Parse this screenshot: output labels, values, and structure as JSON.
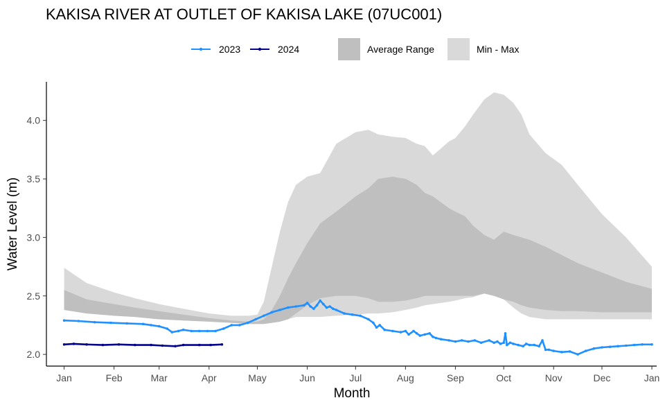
{
  "chart_data": {
    "type": "line",
    "title": "KAKISA RIVER AT OUTLET OF KAKISA LAKE (07UC001)",
    "xlabel": "Month",
    "ylabel": "Water Level (m)",
    "x_unit": "day of year",
    "xlim": [
      -10,
      369
    ],
    "ylim": [
      1.9,
      4.33
    ],
    "x_ticks": [
      {
        "label": "Jan",
        "day": 1
      },
      {
        "label": "Feb",
        "day": 32
      },
      {
        "label": "Mar",
        "day": 60
      },
      {
        "label": "Apr",
        "day": 91
      },
      {
        "label": "May",
        "day": 121
      },
      {
        "label": "Jun",
        "day": 152
      },
      {
        "label": "Jul",
        "day": 182
      },
      {
        "label": "Aug",
        "day": 213
      },
      {
        "label": "Sep",
        "day": 244
      },
      {
        "label": "Oct",
        "day": 274
      },
      {
        "label": "Nov",
        "day": 305
      },
      {
        "label": "Dec",
        "day": 335
      },
      {
        "label": "Jan",
        "day": 366
      }
    ],
    "y_ticks": [
      {
        "label": "2.0",
        "value": 2.0
      },
      {
        "label": "2.5",
        "value": 2.5
      },
      {
        "label": "3.0",
        "value": 3.0
      },
      {
        "label": "3.5",
        "value": 3.5
      },
      {
        "label": "4.0",
        "value": 4.0
      }
    ],
    "legend": {
      "position": "top",
      "lines": [
        {
          "label": "2023",
          "color": "#1e90ff"
        },
        {
          "label": "2024",
          "color": "#00008b"
        }
      ],
      "bands": [
        {
          "label": "Average Range",
          "color": "#bfbfbf"
        },
        {
          "label": "Min - Max",
          "color": "#d9d9d9"
        }
      ]
    },
    "min_max_band": {
      "name": "Min - Max",
      "color": "#d9d9d9",
      "x": [
        1,
        15,
        32,
        45,
        60,
        75,
        91,
        105,
        116,
        121,
        125,
        130,
        135,
        140,
        145,
        152,
        160,
        170,
        182,
        190,
        196,
        205,
        213,
        220,
        225,
        230,
        240,
        244,
        250,
        255,
        262,
        268,
        274,
        280,
        285,
        290,
        300,
        310,
        320,
        335,
        350,
        366
      ],
      "max": [
        2.74,
        2.61,
        2.53,
        2.48,
        2.43,
        2.39,
        2.35,
        2.33,
        2.33,
        2.34,
        2.45,
        2.75,
        3.05,
        3.3,
        3.45,
        3.52,
        3.55,
        3.8,
        3.9,
        3.92,
        3.88,
        3.86,
        3.85,
        3.8,
        3.78,
        3.7,
        3.82,
        3.85,
        3.95,
        4.05,
        4.18,
        4.24,
        4.22,
        4.15,
        4.05,
        3.88,
        3.72,
        3.62,
        3.45,
        3.2,
        3.0,
        2.75
      ],
      "min": [
        2.38,
        2.35,
        2.33,
        2.32,
        2.3,
        2.29,
        2.28,
        2.27,
        2.26,
        2.26,
        2.26,
        2.27,
        2.28,
        2.3,
        2.32,
        2.32,
        2.32,
        2.33,
        2.34,
        2.35,
        2.35,
        2.36,
        2.38,
        2.4,
        2.42,
        2.43,
        2.45,
        2.46,
        2.48,
        2.49,
        2.52,
        2.5,
        2.47,
        2.4,
        2.35,
        2.32,
        2.3,
        2.3,
        2.3,
        2.3,
        2.3,
        2.3
      ]
    },
    "average_band": {
      "name": "Average Range",
      "color": "#bfbfbf",
      "x": [
        1,
        15,
        32,
        45,
        60,
        75,
        91,
        105,
        116,
        121,
        125,
        130,
        135,
        140,
        145,
        152,
        160,
        170,
        182,
        190,
        196,
        205,
        213,
        220,
        225,
        230,
        240,
        244,
        250,
        255,
        262,
        268,
        274,
        280,
        285,
        290,
        300,
        310,
        320,
        335,
        350,
        366
      ],
      "upper": [
        2.55,
        2.47,
        2.43,
        2.4,
        2.37,
        2.34,
        2.31,
        2.29,
        2.28,
        2.28,
        2.3,
        2.38,
        2.5,
        2.65,
        2.78,
        2.95,
        3.12,
        3.22,
        3.35,
        3.42,
        3.5,
        3.52,
        3.5,
        3.45,
        3.38,
        3.35,
        3.25,
        3.22,
        3.18,
        3.1,
        3.02,
        2.98,
        3.05,
        3.02,
        3.0,
        2.98,
        2.92,
        2.85,
        2.78,
        2.7,
        2.62,
        2.56
      ],
      "lower": [
        2.38,
        2.35,
        2.33,
        2.32,
        2.3,
        2.29,
        2.28,
        2.27,
        2.26,
        2.26,
        2.26,
        2.27,
        2.28,
        2.3,
        2.35,
        2.42,
        2.48,
        2.5,
        2.5,
        2.48,
        2.45,
        2.45,
        2.46,
        2.48,
        2.5,
        2.5,
        2.5,
        2.5,
        2.5,
        2.5,
        2.52,
        2.5,
        2.47,
        2.45,
        2.42,
        2.4,
        2.38,
        2.37,
        2.37,
        2.36,
        2.36,
        2.36
      ]
    },
    "series": [
      {
        "name": "2023",
        "color": "#1e90ff",
        "x": [
          1,
          10,
          20,
          30,
          40,
          50,
          55,
          60,
          65,
          68,
          72,
          75,
          80,
          85,
          90,
          95,
          100,
          105,
          110,
          115,
          120,
          125,
          130,
          135,
          140,
          145,
          150,
          152,
          154,
          156,
          158,
          160,
          162,
          164,
          166,
          168,
          170,
          175,
          180,
          185,
          190,
          193,
          195,
          197,
          200,
          205,
          210,
          213,
          215,
          218,
          220,
          222,
          225,
          228,
          230,
          232,
          235,
          240,
          244,
          248,
          252,
          256,
          260,
          265,
          268,
          270,
          272,
          274,
          275,
          276,
          278,
          280,
          283,
          286,
          288,
          290,
          293,
          296,
          298,
          300,
          302,
          305,
          310,
          315,
          320,
          325,
          330,
          335,
          340,
          345,
          350,
          355,
          360,
          366
        ],
        "y": [
          2.29,
          2.285,
          2.275,
          2.27,
          2.265,
          2.26,
          2.25,
          2.24,
          2.22,
          2.19,
          2.2,
          2.21,
          2.2,
          2.2,
          2.2,
          2.2,
          2.22,
          2.25,
          2.25,
          2.27,
          2.3,
          2.33,
          2.36,
          2.38,
          2.4,
          2.41,
          2.42,
          2.44,
          2.41,
          2.39,
          2.42,
          2.46,
          2.43,
          2.4,
          2.41,
          2.39,
          2.38,
          2.35,
          2.34,
          2.33,
          2.3,
          2.27,
          2.23,
          2.25,
          2.21,
          2.2,
          2.19,
          2.2,
          2.17,
          2.2,
          2.18,
          2.16,
          2.17,
          2.18,
          2.15,
          2.14,
          2.13,
          2.12,
          2.11,
          2.12,
          2.11,
          2.12,
          2.1,
          2.12,
          2.1,
          2.11,
          2.09,
          2.1,
          2.18,
          2.08,
          2.1,
          2.09,
          2.08,
          2.07,
          2.09,
          2.08,
          2.08,
          2.07,
          2.12,
          2.04,
          2.04,
          2.03,
          2.02,
          2.025,
          2.0,
          2.03,
          2.05,
          2.06,
          2.065,
          2.07,
          2.075,
          2.08,
          2.085,
          2.085
        ]
      },
      {
        "name": "2024",
        "color": "#00008b",
        "x": [
          1,
          7,
          15,
          25,
          35,
          45,
          55,
          62,
          70,
          75,
          85,
          92,
          99
        ],
        "y": [
          2.085,
          2.09,
          2.085,
          2.08,
          2.085,
          2.08,
          2.08,
          2.075,
          2.07,
          2.08,
          2.08,
          2.08,
          2.085
        ]
      }
    ]
  }
}
